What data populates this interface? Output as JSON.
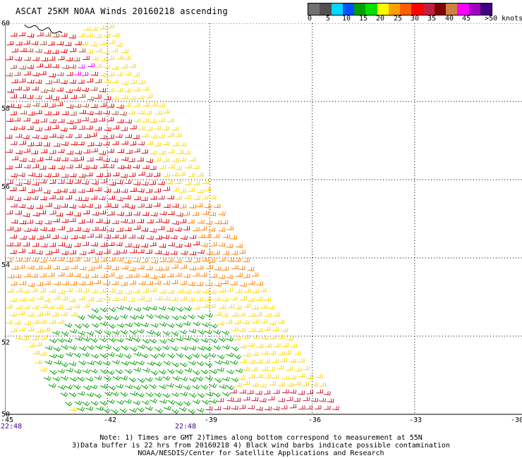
{
  "title": "ASCAT 25KM NOAA Winds 20160218 ascending",
  "colorbar": {
    "colors": [
      "#707070",
      "#505050",
      "#00d7ff",
      "#0050ff",
      "#00a000",
      "#00e000",
      "#ffff00",
      "#ffa000",
      "#ff6000",
      "#ff0000",
      "#c02040",
      "#800000",
      "#d08040",
      "#ff00ff",
      "#a000c0",
      "#400080"
    ],
    "labels": [
      "0",
      "5",
      "10",
      "15",
      "20",
      "25",
      "30",
      "35",
      "40",
      "45",
      ">50 knots"
    ]
  },
  "map": {
    "lat_labels": [
      "60",
      "58",
      "56",
      "54",
      "52",
      "50"
    ],
    "lon_labels": [
      "-45",
      "-42",
      "-39",
      "-36",
      "-33",
      "-30"
    ],
    "time_labels": [
      "22:48",
      "22:48"
    ],
    "barb_colors": {
      "green": "#00a000",
      "yellow": "#ffd700",
      "orange": "#ff8000",
      "red": "#e00000",
      "crimson": "#c02040",
      "brown": "#a05030",
      "magenta": "#ff00ff",
      "blue": "#0000ff"
    }
  },
  "notes": [
    "Note: 1) Times are GMT 2)Times along bottom correspond to measurement at 55N",
    "3)Data buffer is 22 hrs from 20160218 4) Black wind barbs indicate possible contamination",
    "NOAA/NESDIS/Center for Satellite Applications and Research"
  ]
}
